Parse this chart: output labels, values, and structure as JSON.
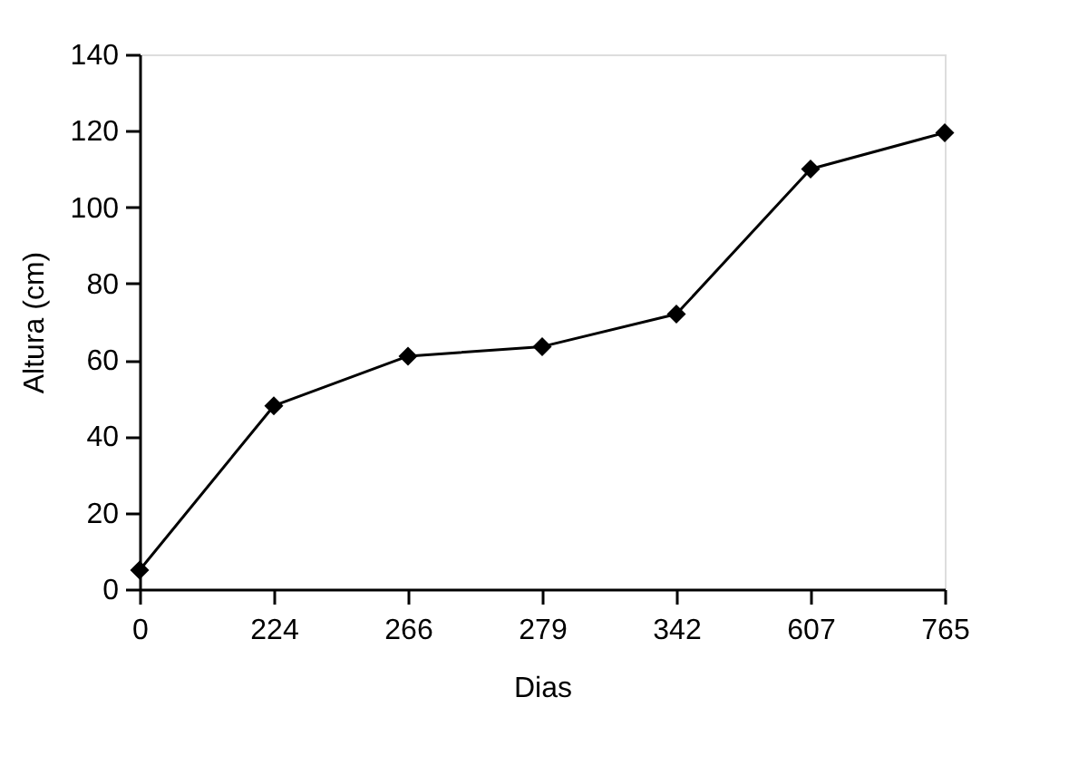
{
  "chart_data": {
    "type": "line",
    "xlabel": "Dias",
    "ylabel": "Altura (cm)",
    "categories": [
      "0",
      "224",
      "266",
      "279",
      "342",
      "607",
      "765"
    ],
    "series": [
      {
        "color": "#000000",
        "values": [
          5,
          48,
          61,
          63.5,
          72,
          110,
          119.5
        ]
      }
    ],
    "ylim": [
      0,
      140
    ],
    "yticks": [
      0,
      20,
      40,
      60,
      80,
      100,
      120,
      140
    ],
    "grid": false,
    "marker": "diamond",
    "line_style": "solid"
  }
}
